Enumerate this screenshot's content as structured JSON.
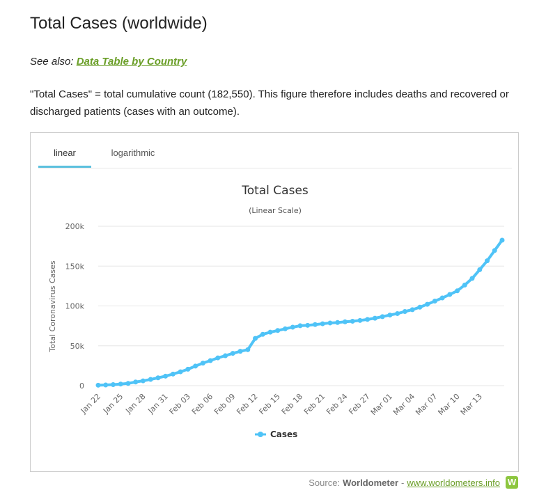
{
  "page": {
    "title": "Total Cases (worldwide)",
    "see_also_prefix": "See also: ",
    "see_also_link": "Data Table by Country",
    "description": "\"Total Cases\" = total cumulative count (182,550). This figure therefore includes deaths and recovered or discharged patients (cases with an outcome)."
  },
  "tabs": [
    {
      "label": "linear",
      "active": true
    },
    {
      "label": "logarithmic",
      "active": false
    }
  ],
  "source": {
    "prefix": "Source: ",
    "brand": "Worldometer",
    "separator": " - ",
    "link": "www.worldometers.info",
    "logo_letter": "W"
  },
  "colors": {
    "series": "#4fc3f7",
    "link_green": "#6a9e27",
    "tab_underline": "#5bc0de",
    "gridline": "#e6e6e6"
  },
  "chart_data": {
    "type": "line",
    "title": "Total Cases",
    "subtitle": "(Linear Scale)",
    "ylabel": "Total Coronavirus Cases",
    "xlabel": "",
    "ylim": [
      0,
      200000
    ],
    "yticks": [
      0,
      50000,
      100000,
      150000,
      200000
    ],
    "ytick_labels": [
      "0",
      "50k",
      "100k",
      "150k",
      "200k"
    ],
    "xtick_labels": [
      "Jan 22",
      "Jan 25",
      "Jan 28",
      "Jan 31",
      "Feb 03",
      "Feb 06",
      "Feb 09",
      "Feb 12",
      "Feb 15",
      "Feb 18",
      "Feb 21",
      "Feb 24",
      "Feb 27",
      "Mar 01",
      "Mar 04",
      "Mar 07",
      "Mar 10",
      "Mar 13"
    ],
    "grid": true,
    "legend": "bottom-center",
    "x": [
      "Jan 22",
      "Jan 23",
      "Jan 24",
      "Jan 25",
      "Jan 26",
      "Jan 27",
      "Jan 28",
      "Jan 29",
      "Jan 30",
      "Jan 31",
      "Feb 01",
      "Feb 02",
      "Feb 03",
      "Feb 04",
      "Feb 05",
      "Feb 06",
      "Feb 07",
      "Feb 08",
      "Feb 09",
      "Feb 10",
      "Feb 11",
      "Feb 12",
      "Feb 13",
      "Feb 14",
      "Feb 15",
      "Feb 16",
      "Feb 17",
      "Feb 18",
      "Feb 19",
      "Feb 20",
      "Feb 21",
      "Feb 22",
      "Feb 23",
      "Feb 24",
      "Feb 25",
      "Feb 26",
      "Feb 27",
      "Feb 28",
      "Feb 29",
      "Mar 01",
      "Mar 02",
      "Mar 03",
      "Mar 04",
      "Mar 05",
      "Mar 06",
      "Mar 07",
      "Mar 08",
      "Mar 09",
      "Mar 10",
      "Mar 11",
      "Mar 12",
      "Mar 13",
      "Mar 14",
      "Mar 15",
      "Mar 16"
    ],
    "series": [
      {
        "name": "Cases",
        "values": [
          580,
          845,
          1317,
          2015,
          2800,
          4581,
          6058,
          7813,
          9823,
          11950,
          14553,
          17391,
          20630,
          24545,
          28266,
          31439,
          34876,
          37552,
          40553,
          43099,
          45134,
          59287,
          64438,
          67100,
          69197,
          71329,
          73332,
          75184,
          75700,
          76677,
          77673,
          78651,
          79205,
          80087,
          80828,
          81820,
          83112,
          84615,
          86604,
          88585,
          90443,
          93016,
          95314,
          98425,
          102050,
          106099,
          109991,
          114381,
          118948,
          126214,
          134576,
          145483,
          156653,
          169593,
          182550
        ]
      }
    ]
  }
}
